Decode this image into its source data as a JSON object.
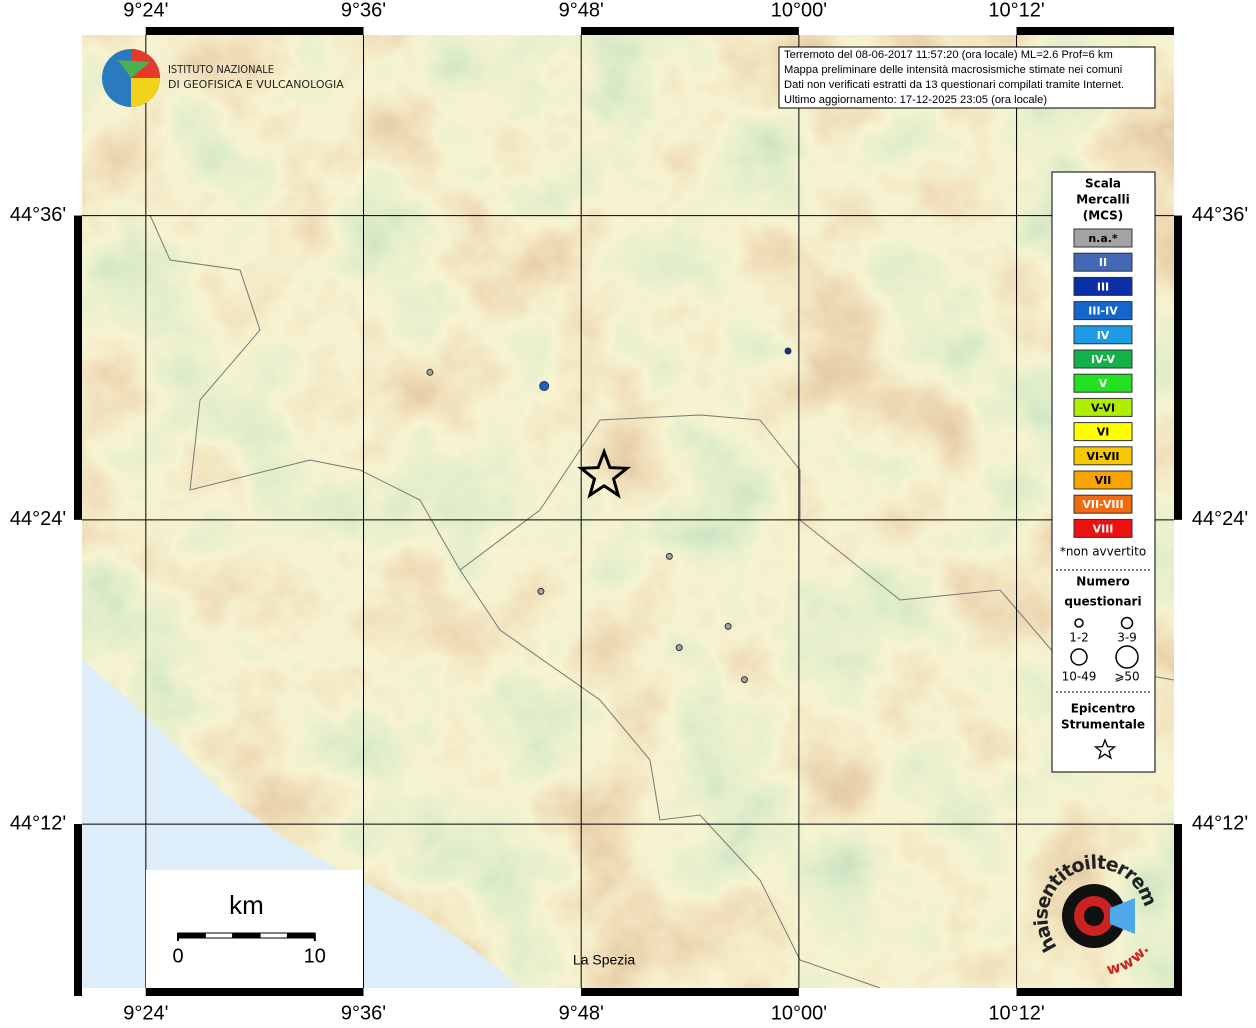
{
  "header": {
    "institute_lines": [
      "ISTITUTO NAZIONALE",
      "DI GEOFISICA E VULCANOLOGIA"
    ]
  },
  "info_box": [
    "Terremoto del 08-06-2017 11:57:20 (ora locale) ML=2.6 Prof=6 km",
    "Mappa preliminare delle intensità macrosismiche stimate nei comuni",
    "Dati non verificati estratti da 13 questionari compilati tramite Internet.",
    "Ultimo aggiornamento: 17-12-2025 23:05 (ora locale)"
  ],
  "map": {
    "lonlim": [
      9.334,
      10.352
    ],
    "latlim": [
      44.087,
      44.724
    ],
    "lon_ticks": [
      {
        "value": 9.4,
        "label": "9°24'"
      },
      {
        "value": 9.6,
        "label": "9°36'"
      },
      {
        "value": 9.8,
        "label": "9°48'"
      },
      {
        "value": 10.0,
        "label": "10°00'"
      },
      {
        "value": 10.2,
        "label": "10°12'"
      }
    ],
    "lat_ticks": [
      {
        "value": 44.6,
        "label": "44°36'"
      },
      {
        "value": 44.4,
        "label": "44°24'"
      },
      {
        "value": 44.2,
        "label": "44°12'"
      }
    ],
    "place_labels": [
      {
        "name": "La Spezia",
        "lon": 9.821,
        "lat": 44.11
      }
    ],
    "epicenter": {
      "lon": 9.821,
      "lat": 44.429
    },
    "points": [
      {
        "lon": 9.661,
        "lat": 44.497,
        "class": "n.a.*",
        "questionnaires": "1-2"
      },
      {
        "lon": 9.766,
        "lat": 44.488,
        "class": "III-IV",
        "questionnaires": "3-9"
      },
      {
        "lon": 9.99,
        "lat": 44.511,
        "class": "III",
        "questionnaires": "1-2"
      },
      {
        "lon": 9.881,
        "lat": 44.376,
        "class": "n.a.*",
        "questionnaires": "1-2"
      },
      {
        "lon": 9.763,
        "lat": 44.353,
        "class": "n.a.*",
        "questionnaires": "1-2"
      },
      {
        "lon": 9.935,
        "lat": 44.33,
        "class": "n.a.*",
        "questionnaires": "1-2"
      },
      {
        "lon": 9.89,
        "lat": 44.316,
        "class": "n.a.*",
        "questionnaires": "1-2"
      },
      {
        "lon": 9.95,
        "lat": 44.295,
        "class": "n.a.*",
        "questionnaires": "1-2"
      }
    ]
  },
  "legend": {
    "title_lines": [
      "Scala",
      "Mercalli",
      "(MCS)"
    ],
    "classes": [
      {
        "label": "n.a.*",
        "color": "#a3a3a3"
      },
      {
        "label": "II",
        "color": "#4468b8"
      },
      {
        "label": "III",
        "color": "#0b2fa6"
      },
      {
        "label": "III-IV",
        "color": "#1565cf"
      },
      {
        "label": "IV",
        "color": "#1e9be2"
      },
      {
        "label": "IV-V",
        "color": "#14b048"
      },
      {
        "label": "V",
        "color": "#22e022"
      },
      {
        "label": "V-VI",
        "color": "#b0ee00"
      },
      {
        "label": "VI",
        "color": "#ffff00"
      },
      {
        "label": "VI-VII",
        "color": "#f5c800"
      },
      {
        "label": "VII",
        "color": "#f7a400"
      },
      {
        "label": "VII-VIII",
        "color": "#f26a10"
      },
      {
        "label": "VIII",
        "color": "#ee1111"
      }
    ],
    "footnote": "*non avvertito",
    "count_title_lines": [
      "Numero",
      "questionari"
    ],
    "count_sizes": [
      "1-2",
      "3-9",
      "10-49",
      "⩾50"
    ],
    "epicenter_title_lines": [
      "Epicentro",
      "Strumentale"
    ]
  },
  "scale_bar": {
    "unit": "km",
    "ticks": [
      0,
      10
    ]
  },
  "logo": {
    "text": "haisentitoilterremoto.it",
    "prefix": "www."
  }
}
